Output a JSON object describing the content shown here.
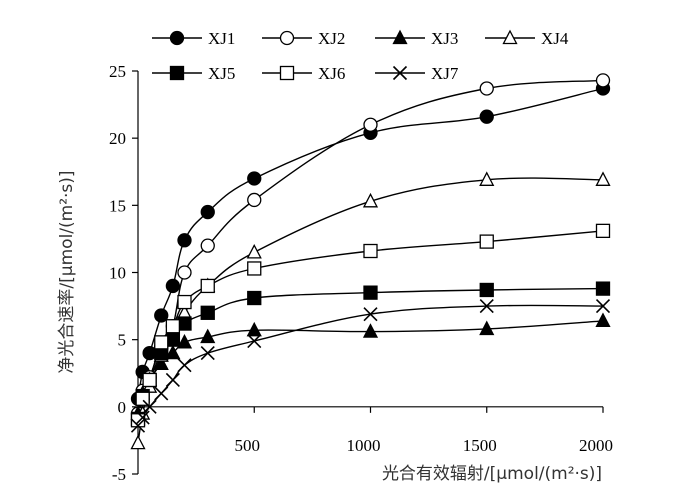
{
  "chart_data": {
    "type": "line",
    "xlabel": "光合有效辐射/[μmol/(m²·s)]",
    "ylabel": "净光合速率/[μmol/(m²·s)]",
    "xlim": [
      0,
      2000
    ],
    "ylim": [
      -5,
      25
    ],
    "x_ticks": [
      "500",
      "1000",
      "1500",
      "2000"
    ],
    "y_ticks": [
      "-5",
      "0",
      "5",
      "10",
      "15",
      "20",
      "25"
    ],
    "grid": false,
    "legend_position": "top",
    "x": [
      0,
      20,
      50,
      100,
      150,
      200,
      300,
      500,
      1000,
      1500,
      2000
    ],
    "series": [
      {
        "name": "XJ1",
        "marker": "circle-filled",
        "values": [
          0.6,
          2.6,
          4.0,
          6.8,
          9.0,
          12.4,
          14.5,
          17.0,
          20.4,
          21.6,
          23.7
        ]
      },
      {
        "name": "XJ2",
        "marker": "circle-open",
        "values": [
          -0.5,
          1.2,
          2.2,
          4.5,
          6.0,
          10.0,
          12.0,
          15.4,
          21.0,
          23.7,
          24.3
        ]
      },
      {
        "name": "XJ3",
        "marker": "triangle-filled",
        "values": [
          -0.5,
          1.0,
          2.0,
          3.2,
          4.0,
          4.8,
          5.2,
          5.7,
          5.6,
          5.8,
          6.4
        ]
      },
      {
        "name": "XJ4",
        "marker": "triangle-open",
        "values": [
          -2.7,
          -0.5,
          1.5,
          3.8,
          5.0,
          7.0,
          9.0,
          11.5,
          15.3,
          16.9,
          16.9
        ]
      },
      {
        "name": "XJ5",
        "marker": "square-filled",
        "values": [
          -0.9,
          0.8,
          2.0,
          4.0,
          5.0,
          6.2,
          7.0,
          8.1,
          8.5,
          8.7,
          8.8
        ]
      },
      {
        "name": "XJ6",
        "marker": "square-open",
        "values": [
          -1.0,
          0.6,
          2.0,
          4.8,
          6.0,
          7.8,
          9.0,
          10.3,
          11.6,
          12.3,
          13.1
        ]
      },
      {
        "name": "XJ7",
        "marker": "x",
        "values": [
          -1.4,
          -0.8,
          0.0,
          1.0,
          2.0,
          3.1,
          4.0,
          4.9,
          6.9,
          7.5,
          7.5
        ]
      }
    ]
  }
}
